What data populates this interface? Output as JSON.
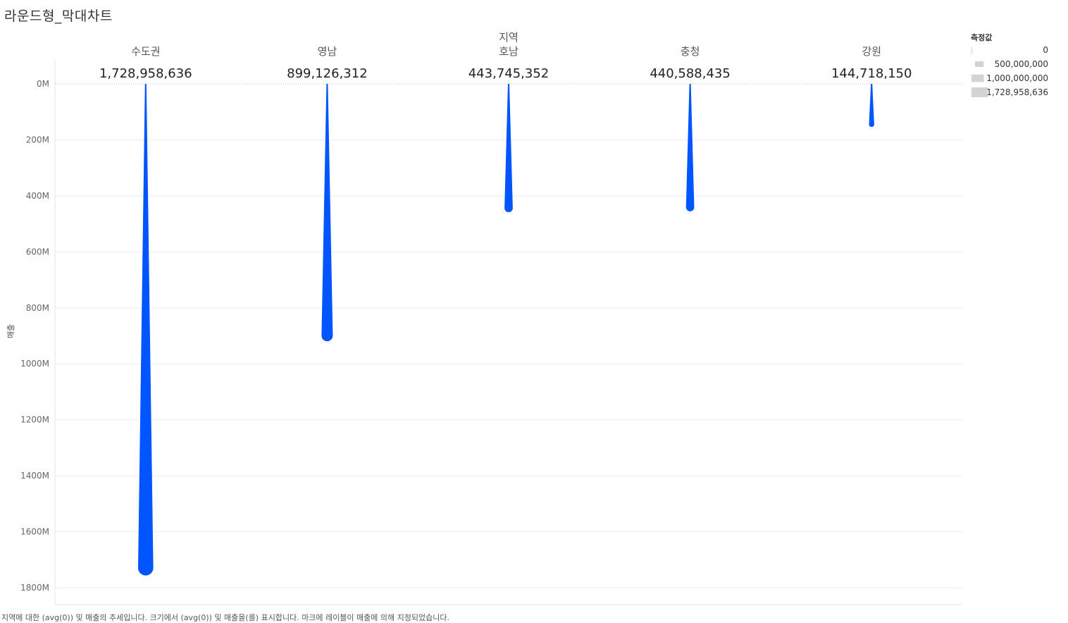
{
  "sheet": {
    "title": "라운드형_막대차트",
    "caption": "지역에 대한 (avg(0)) 및 매출의 추세입니다. 크기에서 (avg(0)) 및 매출을(를) 표시합니다. 마크에 레이블이 매출에 의해 지정되었습니다."
  },
  "chart_data": {
    "type": "bar",
    "column_header": "지역",
    "ylabel": "매출",
    "categories": [
      "수도권",
      "영남",
      "호남",
      "충청",
      "강원"
    ],
    "values": [
      1728958636,
      899126312,
      443745352,
      440588435,
      144718150
    ],
    "value_labels": [
      "1,728,958,636",
      "899,126,312",
      "443,745,352",
      "440,588,435",
      "144,718,150"
    ],
    "ylim": [
      0,
      1800000000
    ],
    "y_reversed": true,
    "y_ticks": [
      0,
      200000000,
      400000000,
      600000000,
      800000000,
      1000000000,
      1200000000,
      1400000000,
      1600000000,
      1800000000
    ],
    "y_tick_labels": [
      "0M",
      "200M",
      "400M",
      "600M",
      "800M",
      "1000M",
      "1200M",
      "1400M",
      "1600M",
      "1800M"
    ],
    "grid": true,
    "bar_color": "#0055FF",
    "legend": {
      "title": "측정값",
      "position": "top-right",
      "entries": [
        {
          "label": "0",
          "value": 0
        },
        {
          "label": "500,000,000",
          "value": 500000000
        },
        {
          "label": "1,000,000,000",
          "value": 1000000000
        },
        {
          "label": "1,728,958,636",
          "value": 1728958636
        }
      ]
    }
  }
}
